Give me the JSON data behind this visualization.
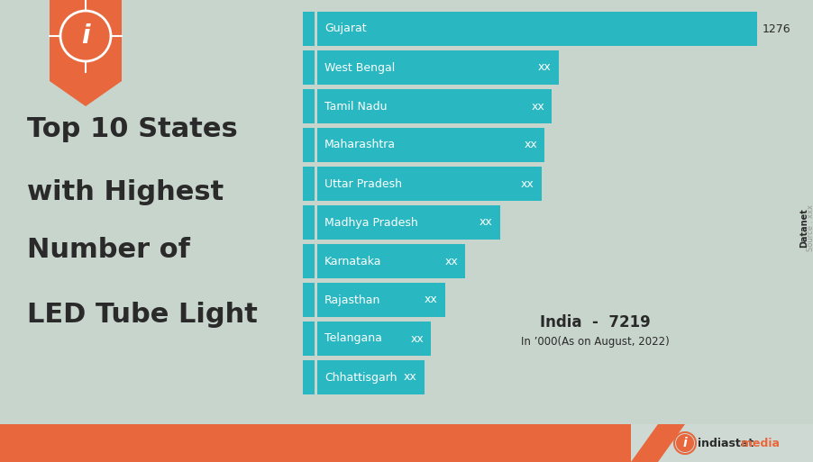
{
  "states": [
    "Gujarat",
    "West Bengal",
    "Tamil Nadu",
    "Maharashtra",
    "Uttar Pradesh",
    "Madhya Pradesh",
    "Karnataka",
    "Rajasthan",
    "Telangana",
    "Chhattisgarh"
  ],
  "values": [
    1276,
    700,
    680,
    660,
    650,
    530,
    430,
    370,
    330,
    310
  ],
  "max_value": 1276,
  "bar_color": "#29B8C2",
  "bg_color": "#c8d5cc",
  "title_lines": [
    "Top 10 States",
    "with Highest",
    "Number of",
    "LED Tube Light"
  ],
  "title_color": "#2a2a2a",
  "india_total": "India  -  7219",
  "india_note": "In ’000(As on August, 2022)",
  "footer_orange": "#e8673c",
  "footer_light": "#cfd9d4",
  "bar_label_xx": "xx",
  "gujarat_value": "1276",
  "accent_color": "#29B8C2",
  "white": "#ffffff",
  "source_text": "Source : xxx",
  "datanet_text": "Datanet",
  "logo_i_text": "i",
  "indiastat_text": "indiastat",
  "media_text": "media"
}
